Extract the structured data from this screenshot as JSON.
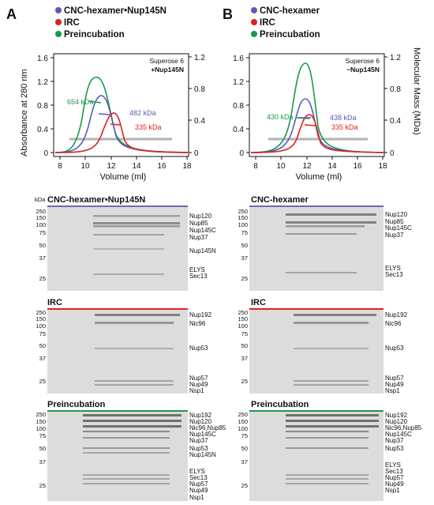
{
  "figure": {
    "panels": [
      {
        "letter": "A",
        "legend": [
          {
            "label": "CNC-hexamer•Nup145N",
            "color": "#5b5bb5"
          },
          {
            "label": "IRC",
            "color": "#e02020"
          },
          {
            "label": "Preincubation",
            "color": "#1a9a4a"
          }
        ],
        "column_label": "Superose 6",
        "condition_label": "+Nup145N",
        "y_left_label": "Absorbance at 280 nm",
        "y_left_ticks": [
          "0",
          "0.4",
          "0.8",
          "1.2",
          "1.6"
        ],
        "y_right_ticks": [
          "0",
          "0.4",
          "0.8",
          "1.2"
        ],
        "x_label": "Volume (ml)",
        "x_ticks": [
          "8",
          "10",
          "12",
          "14",
          "16",
          "18"
        ],
        "mass_labels": [
          {
            "text": "654 kDa",
            "color": "#1a9a4a"
          },
          {
            "text": "482 kDa",
            "color": "#5b5bb5"
          },
          {
            "text": "335 kDa",
            "color": "#e02020"
          }
        ],
        "gels": [
          {
            "title": "CNC-hexamer•Nup145N",
            "bar_color": "#6a6ab8",
            "bands": [
              "Nup120",
              "Nup85",
              "Nup145C",
              "Nup37",
              "Nup145N",
              "ELYS",
              "Sec13"
            ]
          },
          {
            "title": "IRC",
            "bar_color": "#e02020",
            "bands": [
              "Nup192",
              "Nic96",
              "Nup53",
              "Nup57",
              "Nup49",
              "Nsp1"
            ]
          },
          {
            "title": "Preincubation",
            "bar_color": "#1a9a4a",
            "bands": [
              "Nup192",
              "Nup120",
              "Nic96,Nup85",
              "Nup145C",
              "Nup37",
              "Nup53",
              "Nup145N",
              "ELYS",
              "Sec13",
              "Nup57",
              "Nup49",
              "Nsp1"
            ]
          }
        ]
      },
      {
        "letter": "B",
        "legend": [
          {
            "label": "CNC-hexamer",
            "color": "#5b5bb5"
          },
          {
            "label": "IRC",
            "color": "#e02020"
          },
          {
            "label": "Preincubation",
            "color": "#1a9a4a"
          }
        ],
        "column_label": "Superose 6",
        "condition_label": "−Nup145N",
        "y_right_label": "Molecular Mass (MDa)",
        "y_left_ticks": [
          "0",
          "0.4",
          "0.8",
          "1.2",
          "1.6"
        ],
        "y_right_ticks": [
          "0",
          "0.4",
          "0.8",
          "1.2"
        ],
        "x_label": "Volume (ml)",
        "x_ticks": [
          "8",
          "10",
          "12",
          "14",
          "16",
          "18"
        ],
        "mass_labels": [
          {
            "text": "430 kDa",
            "color": "#1a9a4a"
          },
          {
            "text": "438 kDa",
            "color": "#5b5bb5"
          },
          {
            "text": "335 kDa",
            "color": "#e02020"
          }
        ],
        "gels": [
          {
            "title": "CNC-hexamer",
            "bar_color": "#6a6ab8",
            "bands": [
              "Nup120",
              "Nup85",
              "Nup145C",
              "Nup37",
              "ELYS",
              "Sec13"
            ]
          },
          {
            "title": "IRC",
            "bar_color": "#e02020",
            "bands": [
              "Nup192",
              "Nic96",
              "Nup53",
              "Nup57",
              "Nup49",
              "Nsp1"
            ]
          },
          {
            "title": "Preincubation",
            "bar_color": "#1a9a4a",
            "bands": [
              "Nup192",
              "Nup120",
              "Nic96,Nup85",
              "Nup145C",
              "Nup37",
              "Nup53",
              "ELYS",
              "Sec13",
              "Nup57",
              "Nup49",
              "Nsp1"
            ]
          }
        ]
      }
    ],
    "kda_label": "kDa",
    "marker_ladder": [
      "250",
      "150",
      "100",
      "75",
      "50",
      "37",
      "25"
    ]
  }
}
